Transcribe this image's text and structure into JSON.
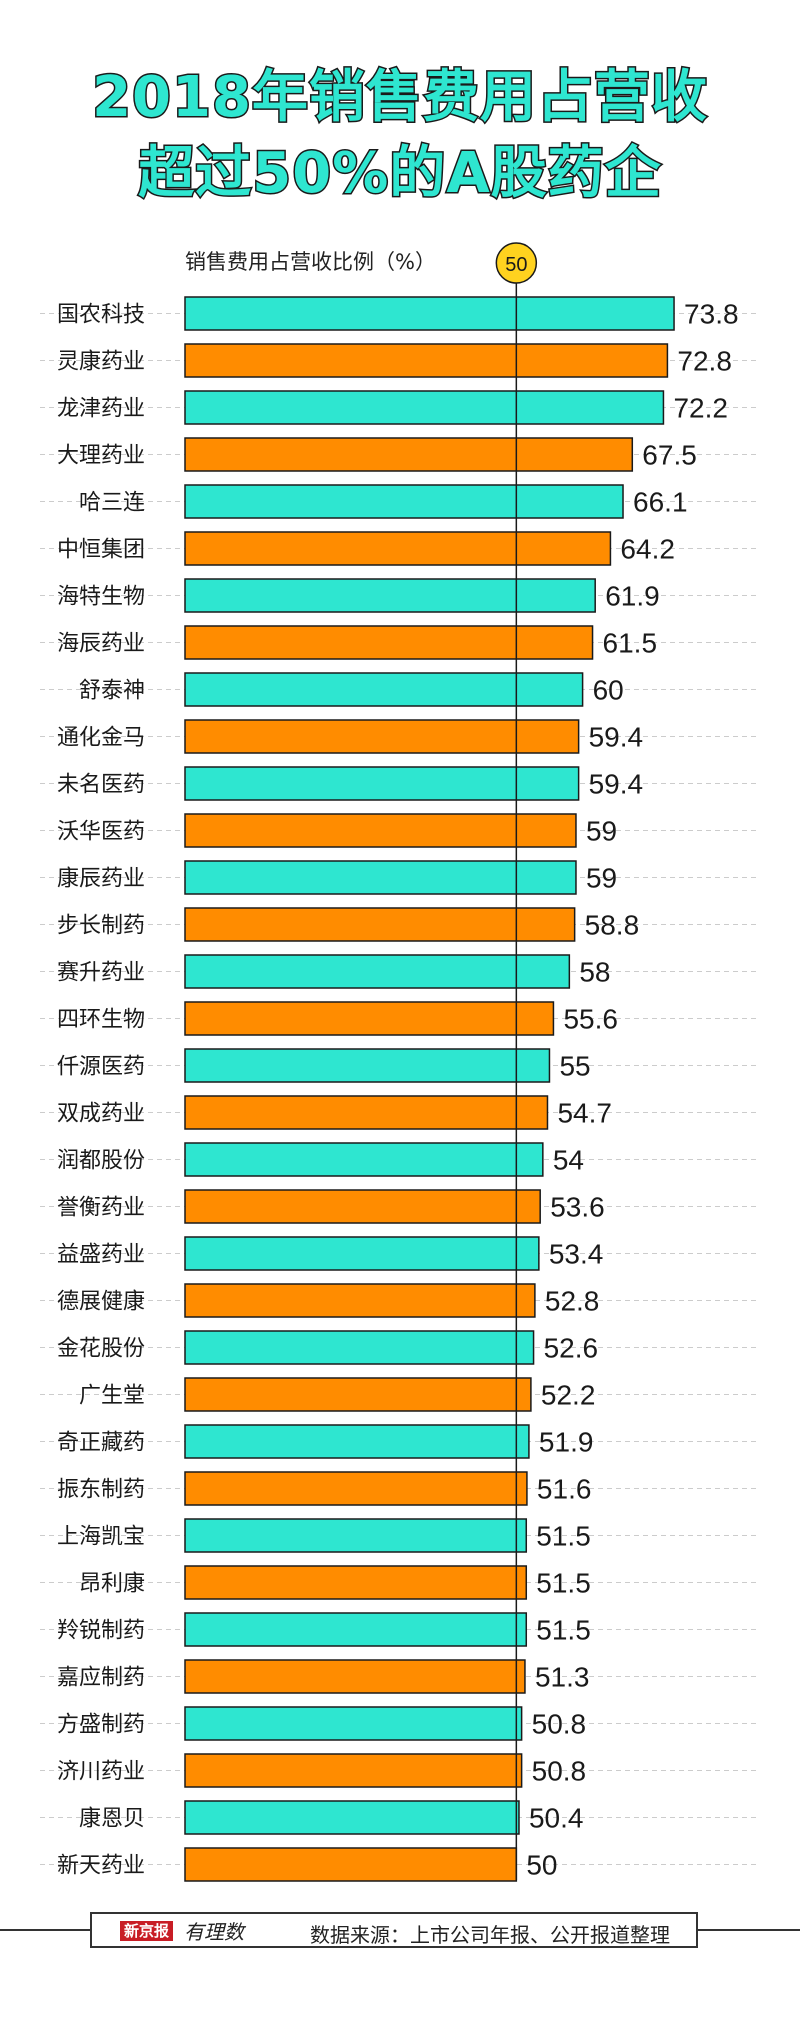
{
  "title": {
    "line1": "2018年销售费用占营收",
    "line2": "超过50%的A股药企"
  },
  "chart_data": {
    "type": "bar",
    "orientation": "horizontal",
    "unit_label": "销售费用占营收比例（%）",
    "reference_line": {
      "value": 50,
      "label": "50"
    },
    "xlim": [
      0,
      75
    ],
    "categories": [
      "国农科技",
      "灵康药业",
      "龙津药业",
      "大理药业",
      "哈三连",
      "中恒集团",
      "海特生物",
      "海辰药业",
      "舒泰神",
      "通化金马",
      "未名医药",
      "沃华医药",
      "康辰药业",
      "步长制药",
      "赛升药业",
      "四环生物",
      "仟源医药",
      "双成药业",
      "润都股份",
      "誉衡药业",
      "益盛药业",
      "德展健康",
      "金花股份",
      "广生堂",
      "奇正藏药",
      "振东制药",
      "上海凯宝",
      "昂利康",
      "羚锐制药",
      "嘉应制药",
      "方盛制药",
      "济川药业",
      "康恩贝",
      "新天药业"
    ],
    "values": [
      73.8,
      72.8,
      72.2,
      67.5,
      66.1,
      64.2,
      61.9,
      61.5,
      60,
      59.4,
      59.4,
      59,
      59,
      58.8,
      58,
      55.6,
      55,
      54.7,
      54,
      53.6,
      53.4,
      52.8,
      52.6,
      52.2,
      51.9,
      51.6,
      51.5,
      51.5,
      51.5,
      51.3,
      50.8,
      50.8,
      50.4,
      50
    ],
    "value_labels": [
      "73.8",
      "72.8",
      "72.2",
      "67.5",
      "66.1",
      "64.2",
      "61.9",
      "61.5",
      "60",
      "59.4",
      "59.4",
      "59",
      "59",
      "58.8",
      "58",
      "55.6",
      "55",
      "54.7",
      "54",
      "53.6",
      "53.4",
      "52.8",
      "52.6",
      "52.2",
      "51.9",
      "51.6",
      "51.5",
      "51.5",
      "51.5",
      "51.3",
      "50.8",
      "50.8",
      "50.4",
      "50"
    ],
    "colors": {
      "odd": "#2ee6d0",
      "even": "#ff8c00",
      "outline": "#1a1a1a",
      "reference_badge": "#ffd21f"
    },
    "grid": "dashed-horizontal"
  },
  "footer": {
    "logo": "新京报",
    "logo_script": "有理数",
    "source": "数据来源：上市公司年报、公开报道整理"
  }
}
